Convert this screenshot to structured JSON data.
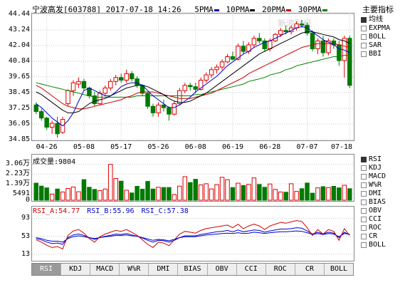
{
  "header": {
    "title": "宁波高发[603788] 2017-07-18 14:26",
    "ma5": "5PMA",
    "ma10": "10PMA",
    "ma20": "20PMA",
    "ma30": "30PMA",
    "ma_colors": {
      "ma5": "#0000c8",
      "ma10": "#000000",
      "ma20": "#cc0000",
      "ma30": "#008000"
    }
  },
  "right_panel": {
    "title": "主要指标",
    "main_indicators": [
      {
        "label": "均线",
        "checked": true
      },
      {
        "label": "EXPMA",
        "checked": false
      },
      {
        "label": "BOLL",
        "checked": false
      },
      {
        "label": "SAR",
        "checked": false
      },
      {
        "label": "BBI",
        "checked": false
      }
    ],
    "sub_indicators": [
      {
        "label": "RSI",
        "checked": true
      },
      {
        "label": "KDJ",
        "checked": false
      },
      {
        "label": "MACD",
        "checked": false
      },
      {
        "label": "W%R",
        "checked": false
      },
      {
        "label": "DMI",
        "checked": false
      },
      {
        "label": "BIAS",
        "checked": false
      },
      {
        "label": "OBV",
        "checked": false
      },
      {
        "label": "CCI",
        "checked": false
      },
      {
        "label": "ROC",
        "checked": false
      },
      {
        "label": "CR",
        "checked": false
      },
      {
        "label": "BOLL",
        "checked": false
      }
    ]
  },
  "volume": {
    "label": "成交量:9804",
    "ticks": [
      "3.06万",
      "2.23万",
      "1.39万",
      "5491",
      "0"
    ]
  },
  "rsi": {
    "rsi_a": "RSI_A:54.77",
    "rsi_b": "RSI_B:55.96",
    "rsi_c": "RSI_C:57.38",
    "ticks": [
      "93",
      "53",
      "13"
    ]
  },
  "tabs": [
    {
      "label": "RSI",
      "active": true
    },
    {
      "label": "KDJ",
      "active": false
    },
    {
      "label": "MACD",
      "active": false
    },
    {
      "label": "W%R",
      "active": false
    },
    {
      "label": "DMI",
      "active": false
    },
    {
      "label": "BIAS",
      "active": false
    },
    {
      "label": "OBV",
      "active": false
    },
    {
      "label": "CCI",
      "active": false
    },
    {
      "label": "ROC",
      "active": false
    },
    {
      "label": "CR",
      "active": false
    },
    {
      "label": "BOLL",
      "active": false
    }
  ],
  "watermark": "新浪财经",
  "chart_data": {
    "type": "candlestick",
    "title": "宁波高发[603788] 2017-07-18 14:26",
    "y_ticks": [
      44.44,
      43.24,
      42.04,
      40.84,
      39.65,
      38.45,
      37.25,
      36.05,
      34.85
    ],
    "ylim": [
      34.85,
      44.44
    ],
    "x_tick_labels": [
      "04-26",
      "05-08",
      "05-17",
      "05-26",
      "06-08",
      "06-19",
      "06-28",
      "07-07",
      "07-18"
    ],
    "x_tick_index": [
      2,
      9,
      16,
      23,
      30,
      37,
      44,
      51,
      59
    ],
    "candles": [
      {
        "o": 37.5,
        "h": 37.7,
        "l": 36.8,
        "c": 37.0
      },
      {
        "o": 37.0,
        "h": 37.2,
        "l": 36.3,
        "c": 36.5
      },
      {
        "o": 36.5,
        "h": 36.6,
        "l": 35.6,
        "c": 35.8
      },
      {
        "o": 35.8,
        "h": 36.3,
        "l": 35.3,
        "c": 36.1
      },
      {
        "o": 36.1,
        "h": 36.6,
        "l": 35.0,
        "c": 35.3
      },
      {
        "o": 35.4,
        "h": 36.6,
        "l": 35.3,
        "c": 36.4
      },
      {
        "o": 37.6,
        "h": 38.7,
        "l": 37.4,
        "c": 38.6
      },
      {
        "o": 38.6,
        "h": 39.4,
        "l": 38.2,
        "c": 39.2
      },
      {
        "o": 39.1,
        "h": 39.6,
        "l": 38.8,
        "c": 39.3
      },
      {
        "o": 39.3,
        "h": 39.5,
        "l": 38.6,
        "c": 38.8
      },
      {
        "o": 38.8,
        "h": 38.9,
        "l": 38.0,
        "c": 38.2
      },
      {
        "o": 38.2,
        "h": 38.5,
        "l": 37.4,
        "c": 37.6
      },
      {
        "o": 37.6,
        "h": 38.6,
        "l": 37.5,
        "c": 38.4
      },
      {
        "o": 38.4,
        "h": 39.0,
        "l": 38.2,
        "c": 38.8
      },
      {
        "o": 38.8,
        "h": 39.5,
        "l": 38.6,
        "c": 39.3
      },
      {
        "o": 39.3,
        "h": 39.8,
        "l": 39.0,
        "c": 39.6
      },
      {
        "o": 39.6,
        "h": 39.9,
        "l": 39.2,
        "c": 39.4
      },
      {
        "o": 39.4,
        "h": 40.2,
        "l": 39.2,
        "c": 39.9
      },
      {
        "o": 39.9,
        "h": 40.1,
        "l": 39.3,
        "c": 39.5
      },
      {
        "o": 39.5,
        "h": 39.7,
        "l": 38.8,
        "c": 39.0
      },
      {
        "o": 39.0,
        "h": 39.1,
        "l": 38.2,
        "c": 38.4
      },
      {
        "o": 38.4,
        "h": 38.5,
        "l": 37.2,
        "c": 37.4
      },
      {
        "o": 37.4,
        "h": 37.6,
        "l": 36.6,
        "c": 36.9
      },
      {
        "o": 36.9,
        "h": 37.7,
        "l": 36.6,
        "c": 37.5
      },
      {
        "o": 37.5,
        "h": 37.9,
        "l": 37.0,
        "c": 37.3
      },
      {
        "o": 37.3,
        "h": 37.4,
        "l": 36.3,
        "c": 36.8
      },
      {
        "o": 36.8,
        "h": 37.8,
        "l": 36.7,
        "c": 37.6
      },
      {
        "o": 37.6,
        "h": 38.8,
        "l": 37.5,
        "c": 38.6
      },
      {
        "o": 38.6,
        "h": 39.2,
        "l": 38.4,
        "c": 39.0
      },
      {
        "o": 39.0,
        "h": 39.2,
        "l": 38.6,
        "c": 38.9
      },
      {
        "o": 38.9,
        "h": 39.2,
        "l": 38.4,
        "c": 38.7
      },
      {
        "o": 38.7,
        "h": 39.6,
        "l": 38.6,
        "c": 39.4
      },
      {
        "o": 39.4,
        "h": 40.0,
        "l": 39.2,
        "c": 39.8
      },
      {
        "o": 39.8,
        "h": 40.4,
        "l": 39.6,
        "c": 40.2
      },
      {
        "o": 40.2,
        "h": 40.6,
        "l": 39.9,
        "c": 40.4
      },
      {
        "o": 40.4,
        "h": 41.0,
        "l": 40.2,
        "c": 40.8
      },
      {
        "o": 40.8,
        "h": 41.4,
        "l": 40.7,
        "c": 41.2
      },
      {
        "o": 41.2,
        "h": 41.6,
        "l": 40.9,
        "c": 41.0
      },
      {
        "o": 41.0,
        "h": 42.2,
        "l": 40.9,
        "c": 42.0
      },
      {
        "o": 42.0,
        "h": 42.4,
        "l": 41.4,
        "c": 41.6
      },
      {
        "o": 41.6,
        "h": 42.3,
        "l": 41.4,
        "c": 42.1
      },
      {
        "o": 42.1,
        "h": 42.8,
        "l": 41.9,
        "c": 42.6
      },
      {
        "o": 42.6,
        "h": 43.0,
        "l": 42.2,
        "c": 42.4
      },
      {
        "o": 42.4,
        "h": 42.6,
        "l": 41.6,
        "c": 41.8
      },
      {
        "o": 41.8,
        "h": 42.6,
        "l": 41.6,
        "c": 42.4
      },
      {
        "o": 42.4,
        "h": 43.0,
        "l": 42.3,
        "c": 42.9
      },
      {
        "o": 42.9,
        "h": 43.4,
        "l": 42.7,
        "c": 43.2
      },
      {
        "o": 43.2,
        "h": 43.6,
        "l": 42.9,
        "c": 43.1
      },
      {
        "o": 43.1,
        "h": 43.6,
        "l": 42.9,
        "c": 43.4
      },
      {
        "o": 43.4,
        "h": 43.9,
        "l": 43.2,
        "c": 43.7
      },
      {
        "o": 43.7,
        "h": 44.0,
        "l": 43.4,
        "c": 43.6
      },
      {
        "o": 43.6,
        "h": 43.8,
        "l": 42.8,
        "c": 43.0
      },
      {
        "o": 43.0,
        "h": 43.2,
        "l": 41.6,
        "c": 41.8
      },
      {
        "o": 41.8,
        "h": 42.6,
        "l": 41.4,
        "c": 42.4
      },
      {
        "o": 42.4,
        "h": 42.8,
        "l": 41.2,
        "c": 41.5
      },
      {
        "o": 41.5,
        "h": 42.6,
        "l": 41.3,
        "c": 42.4
      },
      {
        "o": 42.4,
        "h": 42.6,
        "l": 41.8,
        "c": 42.1
      },
      {
        "o": 42.1,
        "h": 42.4,
        "l": 40.5,
        "c": 40.9
      },
      {
        "o": 40.9,
        "h": 42.8,
        "l": 39.6,
        "c": 42.6
      },
      {
        "o": 42.6,
        "h": 42.8,
        "l": 38.8,
        "c": 39.0
      }
    ],
    "ma5": [
      37.6,
      37.3,
      36.9,
      36.5,
      36.2,
      35.9,
      36.3,
      36.9,
      37.8,
      38.6,
      38.8,
      38.6,
      38.4,
      38.2,
      38.2,
      38.5,
      38.9,
      39.1,
      39.2,
      39.2,
      39.0,
      38.6,
      38.2,
      37.9,
      37.6,
      37.3,
      37.3,
      37.5,
      37.8,
      38.1,
      38.5,
      38.8,
      39.1,
      39.4,
      39.7,
      40.1,
      40.5,
      40.8,
      41.1,
      41.4,
      41.6,
      41.9,
      42.1,
      42.3,
      42.4,
      42.6,
      42.8,
      43.0,
      43.2,
      43.4,
      43.5,
      43.4,
      43.1,
      42.8,
      42.5,
      42.3,
      42.1,
      41.8,
      41.7,
      41.5
    ],
    "ma10": [
      38.5,
      38.3,
      38.0,
      37.7,
      37.4,
      37.1,
      36.9,
      36.9,
      37.0,
      37.3,
      37.6,
      37.8,
      37.9,
      38.0,
      38.2,
      38.4,
      38.6,
      38.8,
      38.9,
      39.0,
      39.0,
      38.9,
      38.7,
      38.5,
      38.3,
      38.0,
      37.8,
      37.7,
      37.7,
      37.8,
      38.0,
      38.2,
      38.4,
      38.7,
      39.0,
      39.3,
      39.6,
      39.9,
      40.2,
      40.5,
      40.8,
      41.1,
      41.4,
      41.6,
      41.8,
      42.0,
      42.2,
      42.4,
      42.6,
      42.8,
      43.0,
      43.1,
      43.1,
      43.0,
      42.9,
      42.8,
      42.7,
      42.5,
      42.4,
      42.2
    ],
    "ma20": [
      39.0,
      38.8,
      38.5,
      38.2,
      37.9,
      37.6,
      37.4,
      37.3,
      37.2,
      37.2,
      37.3,
      37.4,
      37.5,
      37.6,
      37.7,
      37.8,
      37.9,
      38.1,
      38.2,
      38.4,
      38.5,
      38.5,
      38.5,
      38.4,
      38.3,
      38.2,
      38.1,
      38.0,
      38.0,
      38.0,
      38.1,
      38.2,
      38.3,
      38.4,
      38.6,
      38.8,
      39.0,
      39.2,
      39.4,
      39.6,
      39.9,
      40.1,
      40.3,
      40.5,
      40.7,
      40.9,
      41.1,
      41.3,
      41.5,
      41.7,
      41.9,
      42.0,
      42.1,
      42.2,
      42.2,
      42.2,
      42.2,
      42.1,
      42.0,
      41.9
    ],
    "ma30": [
      39.2,
      39.1,
      39.0,
      38.9,
      38.8,
      38.7,
      38.6,
      38.5,
      38.4,
      38.3,
      38.2,
      38.1,
      38.1,
      38.1,
      38.1,
      38.1,
      38.1,
      38.1,
      38.1,
      38.2,
      38.2,
      38.2,
      38.2,
      38.2,
      38.2,
      38.2,
      38.2,
      38.2,
      38.2,
      38.2,
      38.3,
      38.3,
      38.4,
      38.5,
      38.6,
      38.7,
      38.8,
      38.9,
      39.0,
      39.1,
      39.3,
      39.4,
      39.5,
      39.6,
      39.8,
      39.9,
      40.0,
      40.2,
      40.3,
      40.5,
      40.6,
      40.7,
      40.8,
      40.9,
      41.0,
      41.1,
      41.2,
      41.2,
      41.3,
      41.3
    ],
    "volume": {
      "ticks": [
        30600,
        22300,
        13900,
        5491,
        0
      ],
      "ylim": [
        0,
        31500
      ],
      "values": [
        14500,
        12000,
        10500,
        5200,
        9500,
        7000,
        10000,
        11200,
        7200,
        17500,
        11000,
        9200,
        8200,
        9500,
        30500,
        18500,
        16200,
        8500,
        6200,
        11800,
        9400,
        16000,
        9500,
        11000,
        10800,
        10800,
        4800,
        12000,
        20000,
        15000,
        17800,
        13000,
        14000,
        9600,
        13200,
        19500,
        17500,
        10800,
        14500,
        12500,
        13400,
        19000,
        13400,
        11000,
        13800,
        9200,
        7000,
        6800,
        14000,
        7500,
        9800,
        14600,
        6000,
        10500,
        11500,
        10800,
        11800,
        10500,
        12700,
        9804
      ]
    },
    "rsi_lines": {
      "ylim": [
        0,
        100
      ],
      "ticks": [
        93,
        53,
        13
      ],
      "rsi_a": [
        45,
        40,
        33,
        28,
        30,
        25,
        55,
        65,
        68,
        60,
        48,
        40,
        52,
        58,
        62,
        66,
        64,
        68,
        62,
        55,
        45,
        35,
        28,
        40,
        38,
        32,
        45,
        58,
        64,
        62,
        60,
        66,
        70,
        72,
        74,
        76,
        78,
        72,
        80,
        70,
        76,
        80,
        76,
        68,
        76,
        80,
        84,
        82,
        85,
        88,
        86,
        72,
        55,
        68,
        58,
        68,
        64,
        44,
        70,
        54.77
      ],
      "rsi_b": [
        48,
        45,
        40,
        37,
        38,
        35,
        50,
        56,
        58,
        55,
        50,
        46,
        50,
        53,
        55,
        58,
        57,
        59,
        56,
        53,
        49,
        44,
        40,
        44,
        43,
        40,
        44,
        50,
        54,
        54,
        54,
        57,
        59,
        61,
        63,
        64,
        66,
        63,
        67,
        63,
        65,
        67,
        66,
        62,
        65,
        67,
        69,
        69,
        70,
        72,
        71,
        65,
        58,
        62,
        58,
        62,
        60,
        50,
        62,
        55.96
      ],
      "rsi_c": [
        50,
        48,
        44,
        42,
        42,
        40,
        48,
        52,
        54,
        52,
        50,
        48,
        50,
        52,
        53,
        55,
        55,
        56,
        54,
        53,
        50,
        47,
        44,
        46,
        45,
        43,
        46,
        50,
        52,
        52,
        52,
        54,
        56,
        57,
        58,
        59,
        60,
        59,
        61,
        59,
        60,
        62,
        61,
        59,
        61,
        62,
        63,
        63,
        64,
        65,
        64,
        61,
        57,
        59,
        57,
        59,
        58,
        52,
        59,
        57.38
      ]
    }
  }
}
